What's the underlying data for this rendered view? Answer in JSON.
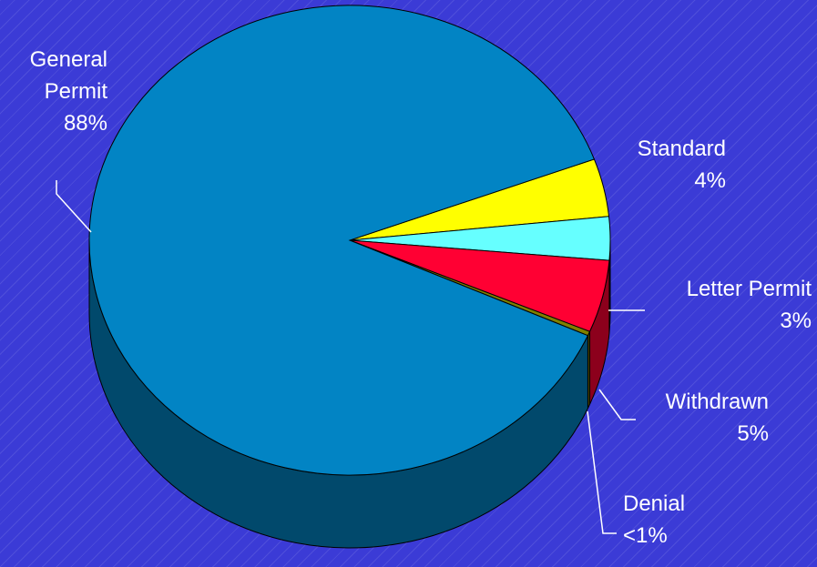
{
  "chart_data": {
    "type": "pie",
    "style": "3d",
    "title": "",
    "slices": [
      {
        "label": "General Permit",
        "value": 88,
        "display": "88%",
        "color": "#0284c4"
      },
      {
        "label": "Standard",
        "value": 4,
        "display": "4%",
        "color": "#ffff00"
      },
      {
        "label": "Letter Permit",
        "value": 3,
        "display": "3%",
        "color": "#66ffff"
      },
      {
        "label": "Withdrawn",
        "value": 5,
        "display": "5%",
        "color": "#ff0033"
      },
      {
        "label": "Denial",
        "value": 0.3,
        "display": "<1%",
        "color": "#808000"
      }
    ]
  },
  "labels": {
    "general_1": "General",
    "general_2": "Permit",
    "general_pct": "88%",
    "standard_1": "Standard",
    "standard_pct": "4%",
    "letter_1": "Letter Permit",
    "letter_pct": "3%",
    "withdrawn_1": "Withdrawn",
    "withdrawn_pct": "5%",
    "denial_1": "Denial",
    "denial_pct": "<1%"
  },
  "colors": {
    "background": "#3b3bd6",
    "side_shade_general": "#02456a",
    "side_shade_withdrawn": "#8a0019"
  }
}
